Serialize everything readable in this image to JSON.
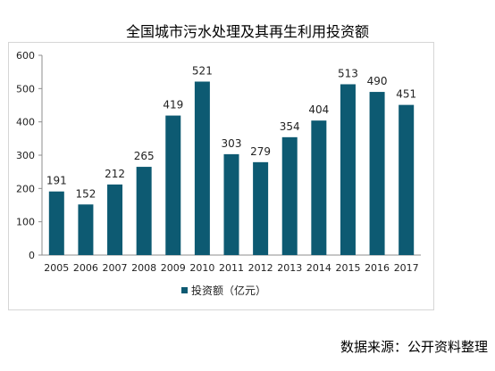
{
  "chart_data": {
    "type": "bar",
    "title": "全国城市污水处理及其再生利用投资额",
    "categories": [
      "2005",
      "2006",
      "2007",
      "2008",
      "2009",
      "2010",
      "2011",
      "2012",
      "2013",
      "2014",
      "2015",
      "2016",
      "2017"
    ],
    "series": [
      {
        "name": "投资额（亿元）",
        "values": [
          191,
          152,
          212,
          265,
          419,
          521,
          303,
          279,
          354,
          404,
          513,
          490,
          451
        ],
        "color": "#0d5a72"
      }
    ],
    "ylim": [
      0,
      600
    ],
    "yticks": [
      0,
      100,
      200,
      300,
      400,
      500,
      600
    ],
    "grid": false,
    "legend": "bottom"
  },
  "source": "数据来源：公开资料整理"
}
